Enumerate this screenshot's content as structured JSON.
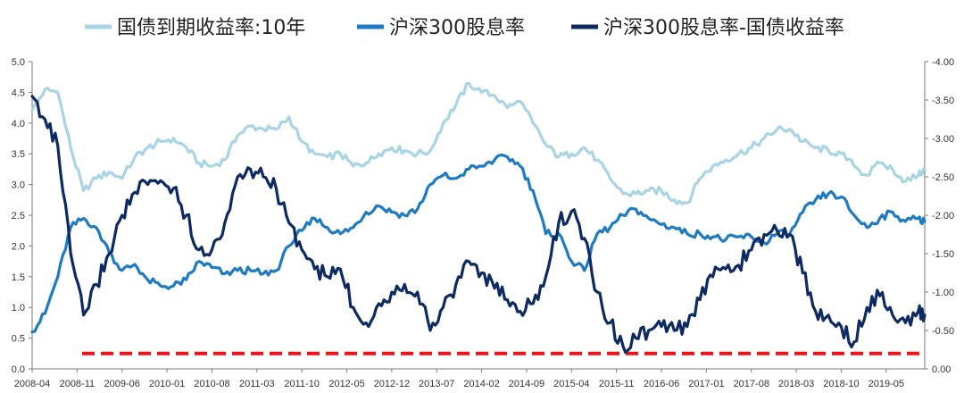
{
  "chart_data": {
    "type": "line",
    "title": "",
    "legend_position": "top",
    "grid": false,
    "x_tick_labels": [
      "2008-04",
      "2008-11",
      "2009-06",
      "2010-01",
      "2010-08",
      "2011-03",
      "2011-10",
      "2012-05",
      "2012-12",
      "2013-07",
      "2014-02",
      "2014-09",
      "2015-04",
      "2015-11",
      "2016-06",
      "2017-01",
      "2017-08",
      "2018-03",
      "2018-10",
      "2019-05"
    ],
    "x_range": [
      "2008-04",
      "2019-11"
    ],
    "y_left": {
      "range": [
        0,
        5.0
      ],
      "ticks": [
        "0.0",
        "0.5",
        "1.0",
        "1.5",
        "2.0",
        "2.5",
        "3.0",
        "3.5",
        "4.0",
        "4.5",
        "5.0"
      ]
    },
    "y_right": {
      "range": [
        0,
        -4.0
      ],
      "ticks": [
        "0.00",
        "-0.50",
        "-1.00",
        "-1.50",
        "-2.00",
        "-2.50",
        "-3.00",
        "-3.50",
        "-4.00"
      ]
    },
    "series": [
      {
        "name": "国债到期收益率:10年",
        "axis": "left",
        "color": "#a8d4e6",
        "data": [
          [
            "2008-04",
            4.2
          ],
          [
            "2008-06",
            4.55
          ],
          [
            "2008-08",
            4.5
          ],
          [
            "2008-10",
            3.6
          ],
          [
            "2008-12",
            2.9
          ],
          [
            "2009-02",
            3.1
          ],
          [
            "2009-04",
            3.2
          ],
          [
            "2009-06",
            3.1
          ],
          [
            "2009-08",
            3.45
          ],
          [
            "2009-10",
            3.6
          ],
          [
            "2009-12",
            3.7
          ],
          [
            "2010-02",
            3.75
          ],
          [
            "2010-04",
            3.6
          ],
          [
            "2010-06",
            3.35
          ],
          [
            "2010-08",
            3.3
          ],
          [
            "2010-10",
            3.4
          ],
          [
            "2010-12",
            3.8
          ],
          [
            "2011-02",
            3.95
          ],
          [
            "2011-04",
            3.9
          ],
          [
            "2011-06",
            3.9
          ],
          [
            "2011-08",
            4.1
          ],
          [
            "2011-10",
            3.7
          ],
          [
            "2011-12",
            3.5
          ],
          [
            "2012-02",
            3.45
          ],
          [
            "2012-04",
            3.5
          ],
          [
            "2012-06",
            3.3
          ],
          [
            "2012-08",
            3.35
          ],
          [
            "2012-10",
            3.5
          ],
          [
            "2012-12",
            3.6
          ],
          [
            "2013-02",
            3.55
          ],
          [
            "2013-04",
            3.5
          ],
          [
            "2013-06",
            3.55
          ],
          [
            "2013-08",
            4.0
          ],
          [
            "2013-10",
            4.3
          ],
          [
            "2013-12",
            4.65
          ],
          [
            "2014-02",
            4.5
          ],
          [
            "2014-04",
            4.45
          ],
          [
            "2014-06",
            4.25
          ],
          [
            "2014-08",
            4.35
          ],
          [
            "2014-10",
            4.0
          ],
          [
            "2014-12",
            3.65
          ],
          [
            "2015-02",
            3.45
          ],
          [
            "2015-04",
            3.5
          ],
          [
            "2015-06",
            3.6
          ],
          [
            "2015-08",
            3.4
          ],
          [
            "2015-10",
            3.1
          ],
          [
            "2015-12",
            2.85
          ],
          [
            "2016-02",
            2.85
          ],
          [
            "2016-04",
            2.9
          ],
          [
            "2016-06",
            2.9
          ],
          [
            "2016-08",
            2.75
          ],
          [
            "2016-10",
            2.7
          ],
          [
            "2016-12",
            3.1
          ],
          [
            "2017-02",
            3.3
          ],
          [
            "2017-04",
            3.4
          ],
          [
            "2017-06",
            3.5
          ],
          [
            "2017-08",
            3.6
          ],
          [
            "2017-10",
            3.75
          ],
          [
            "2017-12",
            3.9
          ],
          [
            "2018-02",
            3.9
          ],
          [
            "2018-04",
            3.7
          ],
          [
            "2018-06",
            3.6
          ],
          [
            "2018-08",
            3.55
          ],
          [
            "2018-10",
            3.5
          ],
          [
            "2018-12",
            3.3
          ],
          [
            "2019-02",
            3.15
          ],
          [
            "2019-04",
            3.35
          ],
          [
            "2019-06",
            3.25
          ],
          [
            "2019-08",
            3.05
          ],
          [
            "2019-10",
            3.15
          ],
          [
            "2019-11",
            3.25
          ]
        ]
      },
      {
        "name": "沪深300股息率",
        "axis": "left",
        "color": "#1f7ac4",
        "data": [
          [
            "2008-04",
            0.6
          ],
          [
            "2008-06",
            0.9
          ],
          [
            "2008-08",
            1.5
          ],
          [
            "2008-10",
            2.3
          ],
          [
            "2008-12",
            2.45
          ],
          [
            "2009-02",
            2.3
          ],
          [
            "2009-04",
            1.9
          ],
          [
            "2009-06",
            1.6
          ],
          [
            "2009-08",
            1.7
          ],
          [
            "2009-10",
            1.45
          ],
          [
            "2009-12",
            1.35
          ],
          [
            "2010-02",
            1.35
          ],
          [
            "2010-04",
            1.45
          ],
          [
            "2010-06",
            1.75
          ],
          [
            "2010-08",
            1.65
          ],
          [
            "2010-10",
            1.55
          ],
          [
            "2010-12",
            1.6
          ],
          [
            "2011-02",
            1.6
          ],
          [
            "2011-04",
            1.55
          ],
          [
            "2011-06",
            1.6
          ],
          [
            "2011-08",
            2.0
          ],
          [
            "2011-10",
            2.25
          ],
          [
            "2011-12",
            2.45
          ],
          [
            "2012-02",
            2.3
          ],
          [
            "2012-04",
            2.2
          ],
          [
            "2012-06",
            2.3
          ],
          [
            "2012-08",
            2.55
          ],
          [
            "2012-10",
            2.65
          ],
          [
            "2012-12",
            2.55
          ],
          [
            "2013-02",
            2.5
          ],
          [
            "2013-04",
            2.6
          ],
          [
            "2013-06",
            3.0
          ],
          [
            "2013-08",
            3.15
          ],
          [
            "2013-10",
            3.1
          ],
          [
            "2013-12",
            3.25
          ],
          [
            "2014-02",
            3.3
          ],
          [
            "2014-04",
            3.4
          ],
          [
            "2014-06",
            3.45
          ],
          [
            "2014-08",
            3.3
          ],
          [
            "2014-10",
            2.9
          ],
          [
            "2014-12",
            2.2
          ],
          [
            "2015-02",
            2.2
          ],
          [
            "2015-04",
            1.75
          ],
          [
            "2015-06",
            1.6
          ],
          [
            "2015-08",
            2.2
          ],
          [
            "2015-10",
            2.3
          ],
          [
            "2015-12",
            2.5
          ],
          [
            "2016-02",
            2.6
          ],
          [
            "2016-04",
            2.45
          ],
          [
            "2016-06",
            2.35
          ],
          [
            "2016-08",
            2.3
          ],
          [
            "2016-10",
            2.2
          ],
          [
            "2016-12",
            2.2
          ],
          [
            "2017-02",
            2.15
          ],
          [
            "2017-04",
            2.1
          ],
          [
            "2017-06",
            2.15
          ],
          [
            "2017-08",
            2.15
          ],
          [
            "2017-10",
            2.05
          ],
          [
            "2017-12",
            2.2
          ],
          [
            "2018-02",
            2.2
          ],
          [
            "2018-04",
            2.55
          ],
          [
            "2018-06",
            2.75
          ],
          [
            "2018-08",
            2.85
          ],
          [
            "2018-10",
            2.8
          ],
          [
            "2018-12",
            2.5
          ],
          [
            "2019-02",
            2.3
          ],
          [
            "2019-04",
            2.45
          ],
          [
            "2019-06",
            2.55
          ],
          [
            "2019-08",
            2.4
          ],
          [
            "2019-10",
            2.45
          ],
          [
            "2019-11",
            2.4
          ]
        ]
      },
      {
        "name": "沪深300股息率-国债收益率",
        "axis": "right",
        "color": "#0d2a63",
        "data": [
          [
            "2008-04",
            -3.55
          ],
          [
            "2008-06",
            -3.25
          ],
          [
            "2008-08",
            -2.9
          ],
          [
            "2008-10",
            -1.5
          ],
          [
            "2008-12",
            -0.7
          ],
          [
            "2009-02",
            -1.1
          ],
          [
            "2009-04",
            -1.5
          ],
          [
            "2009-06",
            -2.0
          ],
          [
            "2009-08",
            -2.3
          ],
          [
            "2009-10",
            -2.4
          ],
          [
            "2009-12",
            -2.45
          ],
          [
            "2010-02",
            -2.35
          ],
          [
            "2010-04",
            -2.0
          ],
          [
            "2010-06",
            -1.55
          ],
          [
            "2010-08",
            -1.55
          ],
          [
            "2010-10",
            -1.9
          ],
          [
            "2010-12",
            -2.5
          ],
          [
            "2011-02",
            -2.6
          ],
          [
            "2011-04",
            -2.5
          ],
          [
            "2011-06",
            -2.35
          ],
          [
            "2011-08",
            -1.9
          ],
          [
            "2011-10",
            -1.55
          ],
          [
            "2011-12",
            -1.3
          ],
          [
            "2012-02",
            -1.2
          ],
          [
            "2012-04",
            -1.3
          ],
          [
            "2012-06",
            -0.8
          ],
          [
            "2012-08",
            -0.6
          ],
          [
            "2012-10",
            -0.85
          ],
          [
            "2012-12",
            -1.0
          ],
          [
            "2013-02",
            -1.1
          ],
          [
            "2013-04",
            -1.0
          ],
          [
            "2013-06",
            -0.5
          ],
          [
            "2013-08",
            -0.8
          ],
          [
            "2013-10",
            -1.1
          ],
          [
            "2013-12",
            -1.4
          ],
          [
            "2014-02",
            -1.25
          ],
          [
            "2014-04",
            -1.05
          ],
          [
            "2014-06",
            -0.9
          ],
          [
            "2014-08",
            -0.75
          ],
          [
            "2014-10",
            -0.85
          ],
          [
            "2014-12",
            -1.2
          ],
          [
            "2015-02",
            -1.9
          ],
          [
            "2015-04",
            -2.05
          ],
          [
            "2015-06",
            -1.7
          ],
          [
            "2015-08",
            -1.0
          ],
          [
            "2015-10",
            -0.6
          ],
          [
            "2015-12",
            -0.3
          ],
          [
            "2016-02",
            -0.4
          ],
          [
            "2016-04",
            -0.5
          ],
          [
            "2016-06",
            -0.55
          ],
          [
            "2016-08",
            -0.5
          ],
          [
            "2016-10",
            -0.55
          ],
          [
            "2016-12",
            -0.9
          ],
          [
            "2017-02",
            -1.2
          ],
          [
            "2017-04",
            -1.3
          ],
          [
            "2017-06",
            -1.35
          ],
          [
            "2017-08",
            -1.55
          ],
          [
            "2017-10",
            -1.75
          ],
          [
            "2017-12",
            -1.8
          ],
          [
            "2018-02",
            -1.75
          ],
          [
            "2018-04",
            -1.25
          ],
          [
            "2018-06",
            -0.75
          ],
          [
            "2018-08",
            -0.7
          ],
          [
            "2018-10",
            -0.55
          ],
          [
            "2018-12",
            -0.35
          ],
          [
            "2019-02",
            -0.8
          ],
          [
            "2019-04",
            -0.95
          ],
          [
            "2019-06",
            -0.7
          ],
          [
            "2019-08",
            -0.6
          ],
          [
            "2019-10",
            -0.75
          ],
          [
            "2019-11",
            -0.7
          ]
        ]
      }
    ],
    "reference_line": {
      "axis": "right",
      "value": -0.2,
      "color": "#e8151b",
      "style": "dashed"
    }
  }
}
